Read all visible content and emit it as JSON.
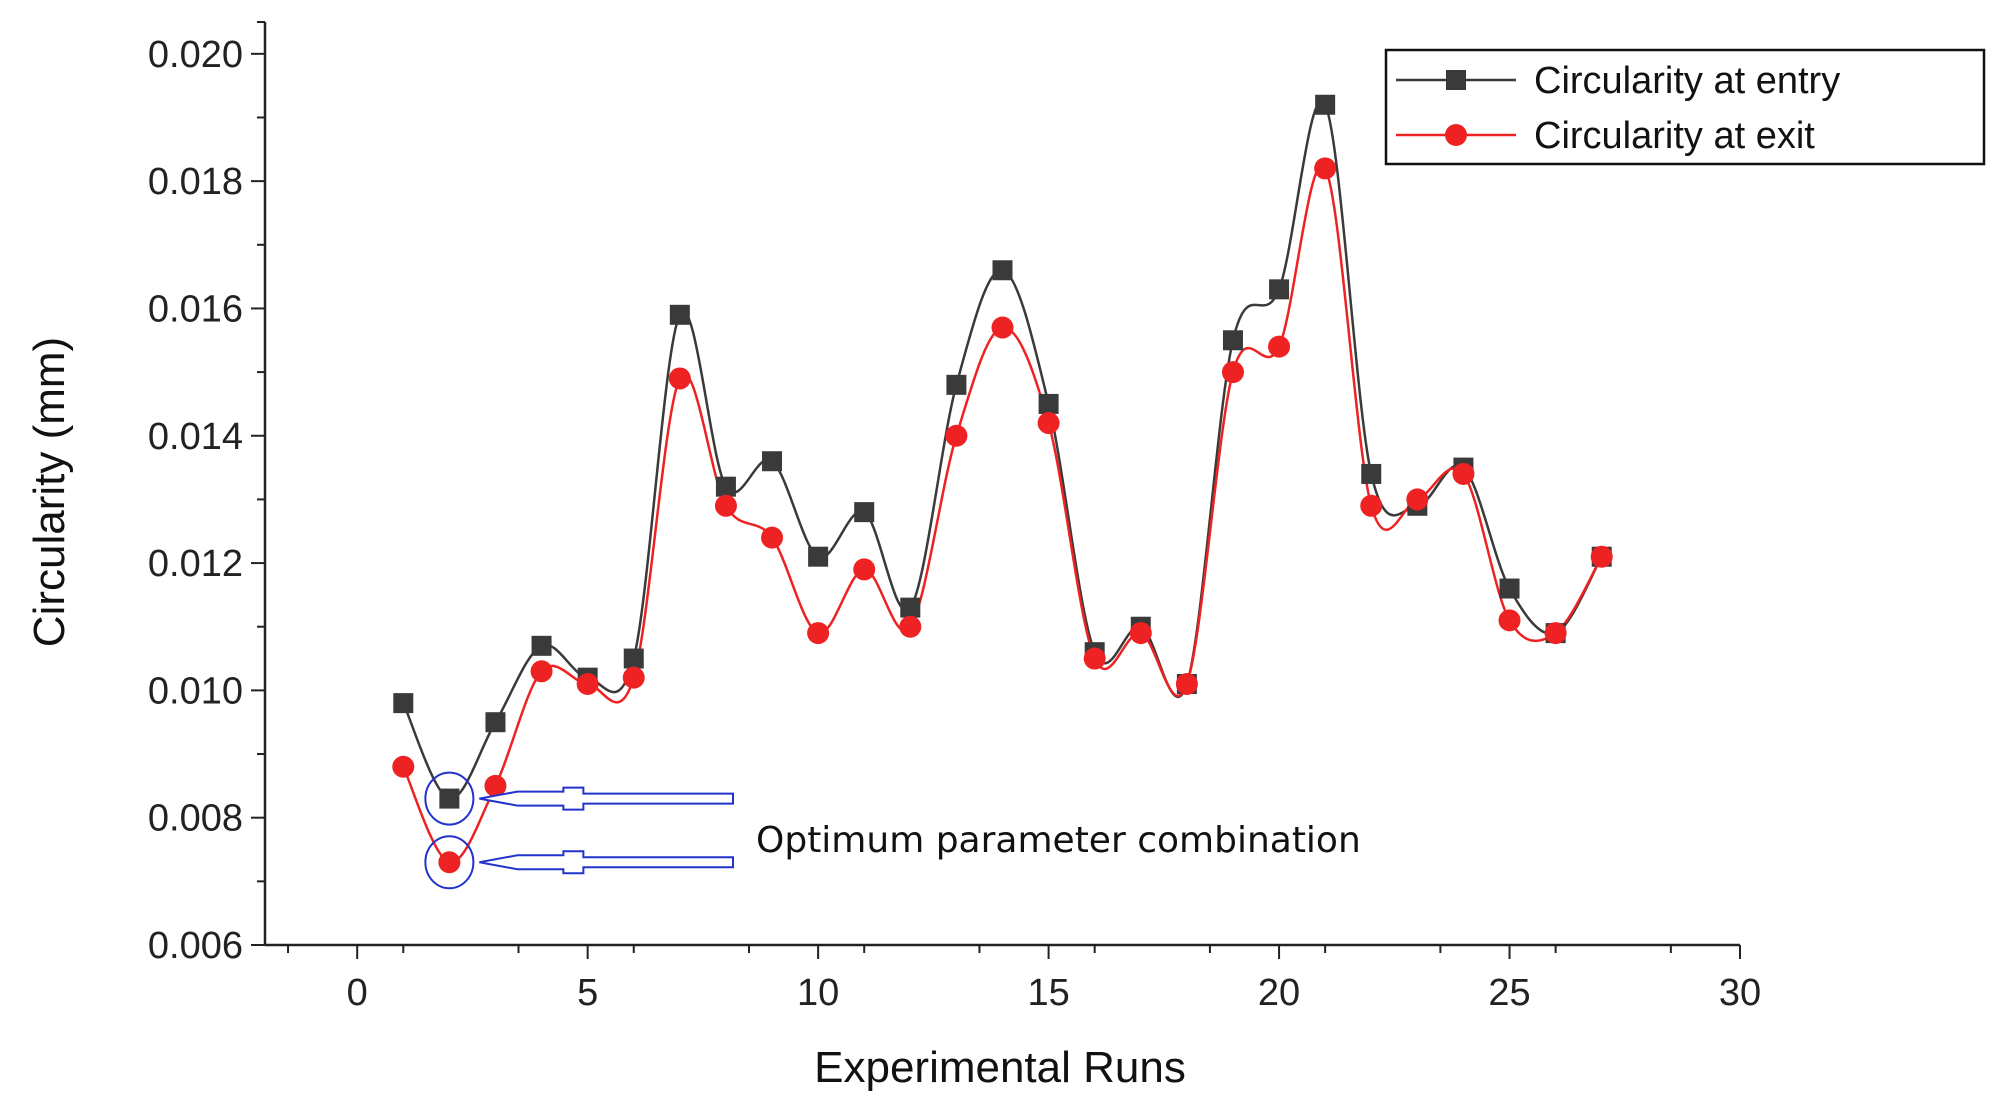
{
  "chart_data": {
    "type": "line",
    "title": "",
    "xlabel": "Experimental Runs",
    "ylabel": "Circularity (mm)",
    "xlim": [
      -2,
      30
    ],
    "ylim": [
      0.006,
      0.0205
    ],
    "x_ticks": [
      0,
      5,
      10,
      15,
      20,
      25,
      30
    ],
    "x_tick_labels": [
      "0",
      "5",
      "10",
      "15",
      "20",
      "25",
      "30"
    ],
    "y_ticks": [
      0.006,
      0.008,
      0.01,
      0.012,
      0.014,
      0.016,
      0.018,
      0.02
    ],
    "y_tick_labels": [
      "0.006",
      "0.008",
      "0.010",
      "0.012",
      "0.014",
      "0.016",
      "0.018",
      "0.020"
    ],
    "grid": false,
    "legend_position": "top-right",
    "x": [
      1,
      2,
      3,
      4,
      5,
      6,
      7,
      8,
      9,
      10,
      11,
      12,
      13,
      14,
      15,
      16,
      17,
      18,
      19,
      20,
      21,
      22,
      23,
      24,
      25,
      26,
      27
    ],
    "series": [
      {
        "name": "Circularity at entry",
        "color": "#3a3a3a",
        "marker": "square",
        "values": [
          0.0098,
          0.0083,
          0.0095,
          0.0107,
          0.0102,
          0.0105,
          0.0159,
          0.0132,
          0.0136,
          0.0121,
          0.0128,
          0.0113,
          0.0148,
          0.0166,
          0.0145,
          0.0106,
          0.011,
          0.0101,
          0.0155,
          0.0163,
          0.0192,
          0.0134,
          0.0129,
          0.0135,
          0.0116,
          0.0109,
          0.0121
        ]
      },
      {
        "name": "Circularity at exit",
        "color": "#ee2222",
        "marker": "circle",
        "values": [
          0.0088,
          0.0073,
          0.0085,
          0.0103,
          0.0101,
          0.0102,
          0.0149,
          0.0129,
          0.0124,
          0.0109,
          0.0119,
          0.011,
          0.014,
          0.0157,
          0.0142,
          0.0105,
          0.0109,
          0.0101,
          0.015,
          0.0154,
          0.0182,
          0.0129,
          0.013,
          0.0134,
          0.0111,
          0.0109,
          0.0121
        ]
      }
    ],
    "annotation": {
      "text": "Optimum parameter combination",
      "target_x": 2,
      "target_values": [
        0.0083,
        0.0073
      ],
      "color": "#2233cc"
    }
  }
}
